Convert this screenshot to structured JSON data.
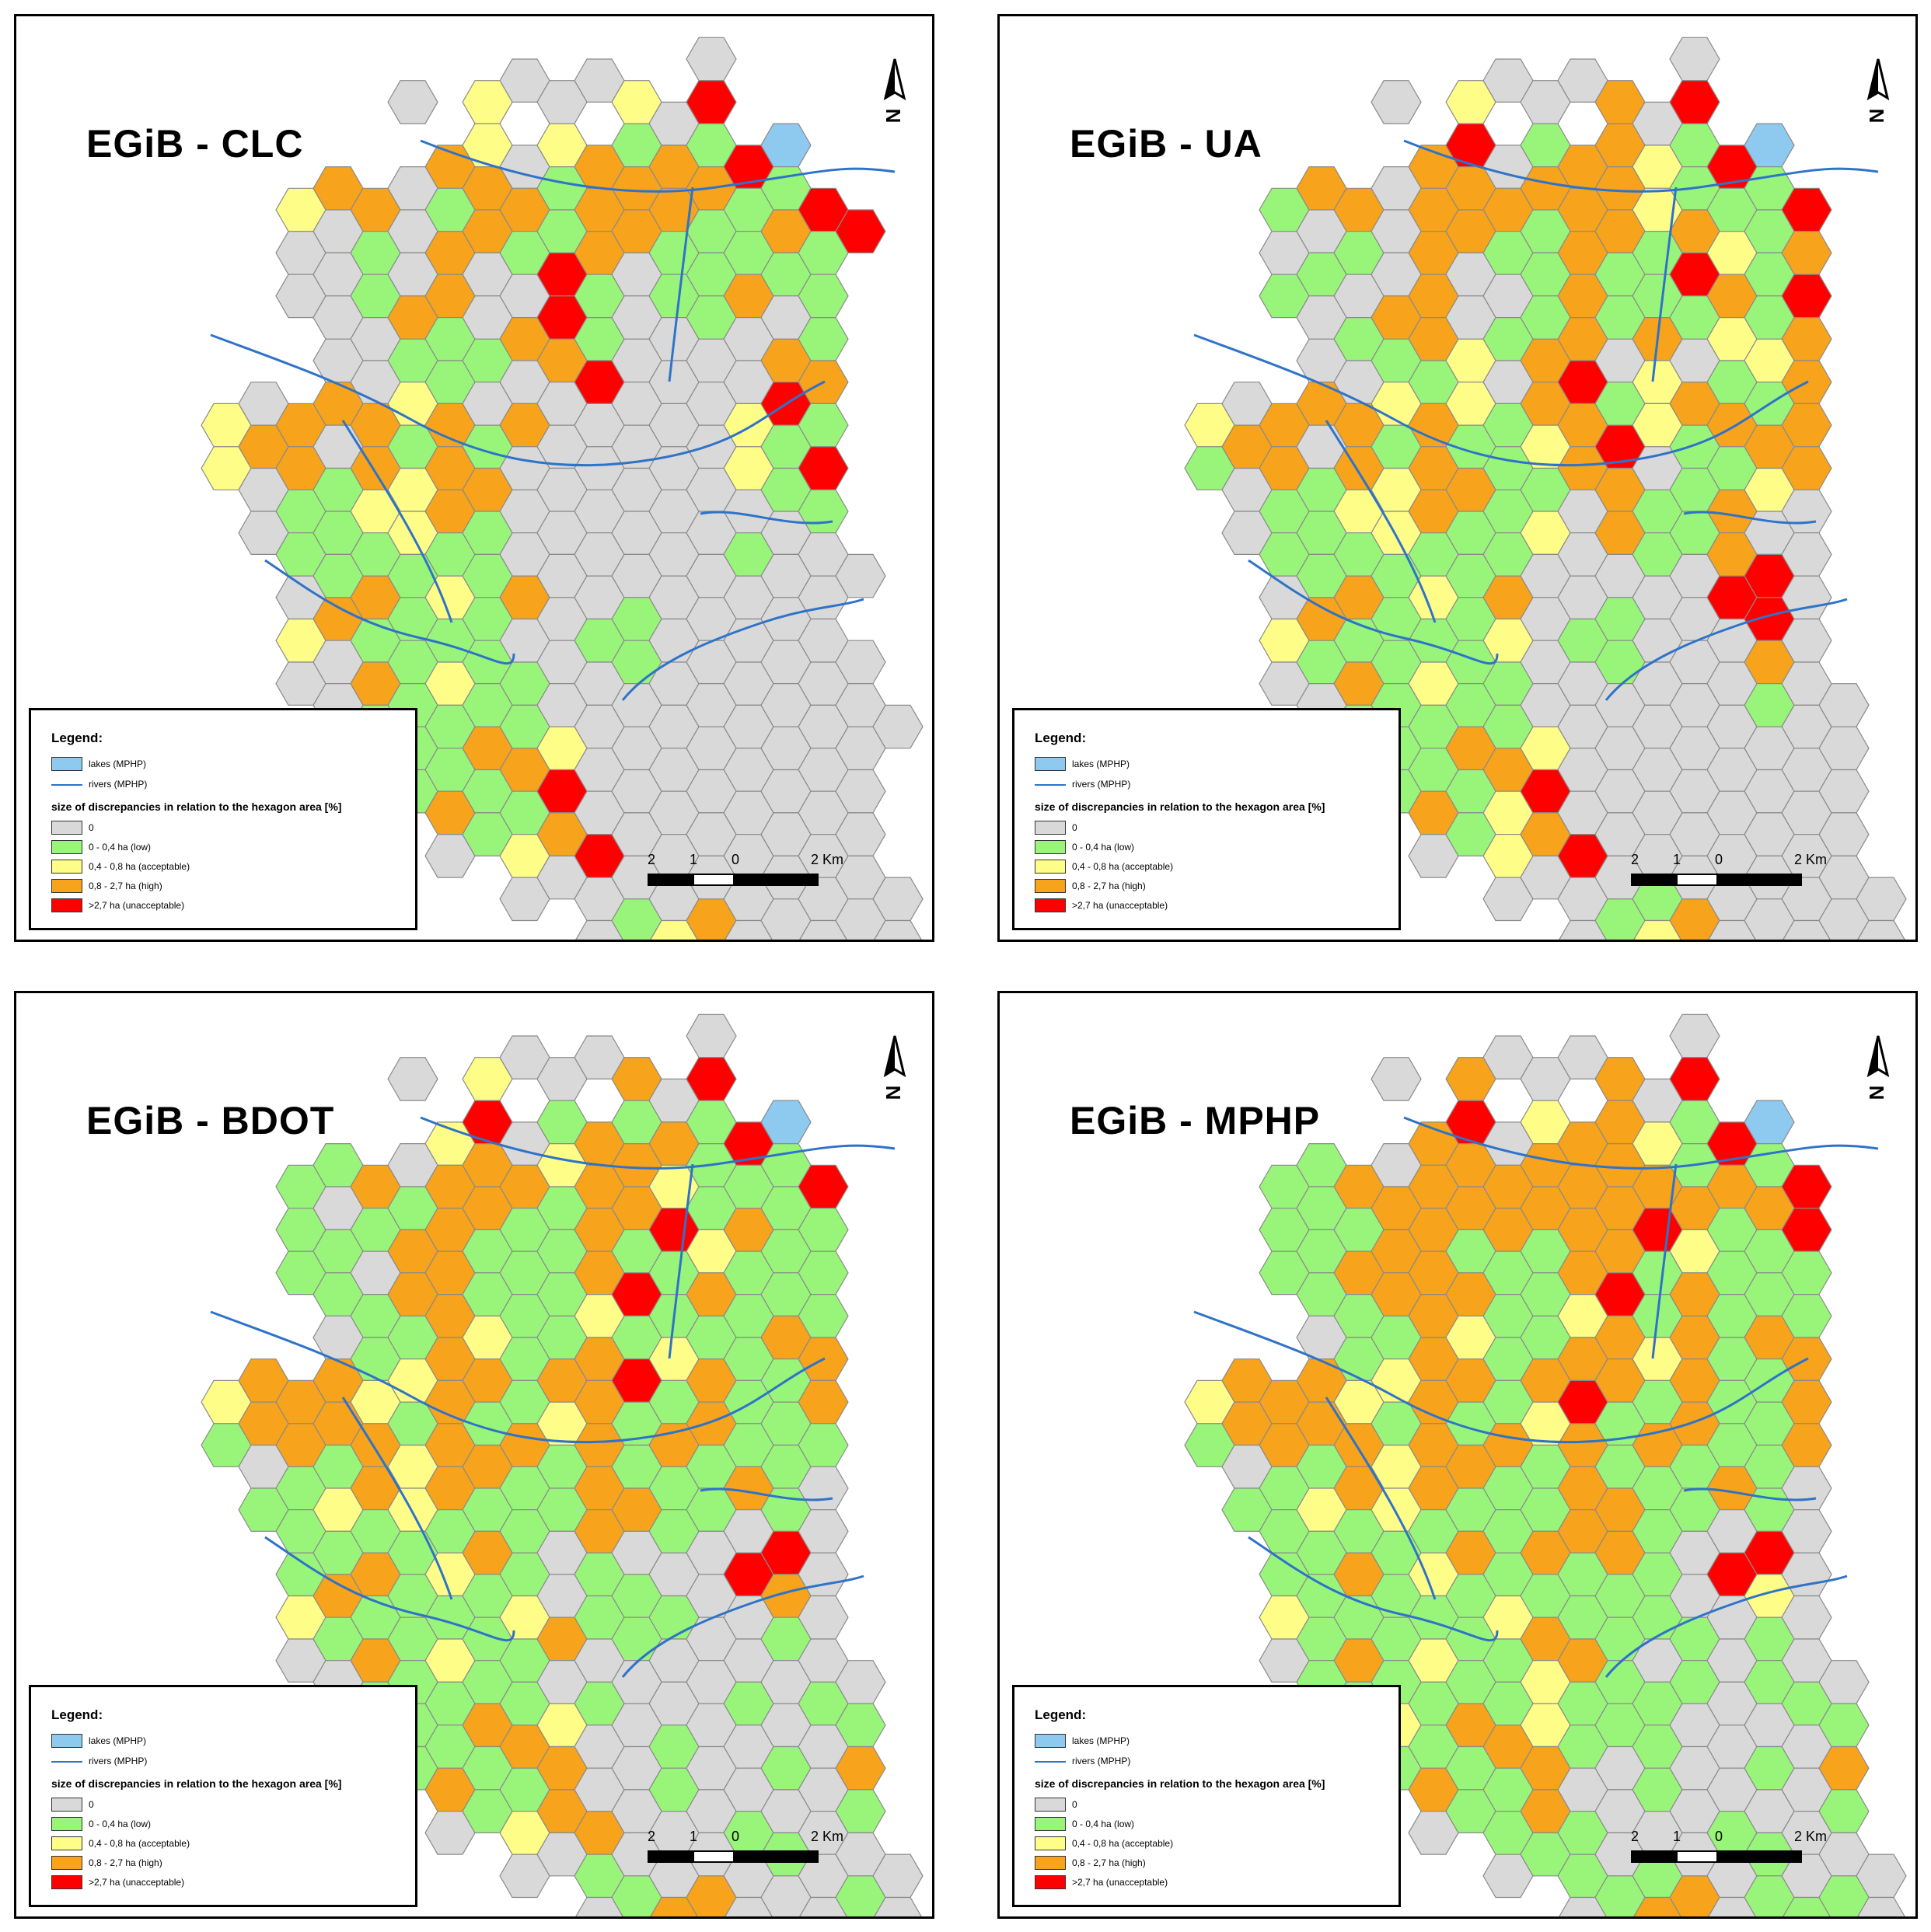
{
  "colors": {
    "zero": "#d9d9d9",
    "low": "#99f57a",
    "acceptable": "#fdfd88",
    "high": "#f7a31b",
    "unacceptable": "#ff0000",
    "lake": "#8ec9f0",
    "river": "#2f73c8",
    "hex_stroke": "#8a8a8a"
  },
  "panels": [
    {
      "title": "EGiB - CLC",
      "hex_map": [
        "---------X-X--X-----",
        "------0-Y-0-Y0R-----",
        "-------OY0YHGOGRL---",
        "---YOO0GOOGHOOOGGR--",
        "---00G0HHGGHHGGGOGR-",
        "---00G0O00RG0GGHGG--",
        "----00HG0HRG00G00G--",
        "----00GGG0HR0000HO--",
        "-Y0OOOYH0H00000YRG--",
        "-YOO0OGHG000000YGR--",
        "--0GGYYHO0000000GG--",
        "--0GGGYGG000000G00--",
        "---0GOGYGH000000000-",
        "---YOGGGG00GG00000--",
        "---00OGYGG00G000000-",
        "----0GGGGG0000000000",
        "----00GGOHY00000000-",
        "-----GGOGGR00000000-",
        "-------0GYOR0000000-",
        "---------00000000000",
        "-----------0GYO00000",
        "------------YYOO000-",
        "-------------0000---"
      ]
    },
    {
      "title": "EGiB - UA",
      "hex_map": [
        "---------X-X--X-----",
        "------0-Y-0-O0R-----",
        "-------OR0GHOYGRL---",
        "---GOO0HOOOHOYGGGR--",
        "---00G0HHGGHOGOYGH--",
        "---GG00O00GHGGRHGR--",
        "----0GHO0GGHGOGYGO--",
        "----00GGY0OR0Y0GYO--",
        "-Y0OOOYHYGOHGYOHGO--",
        "-GOO0OGHGGYOR0GGHO--",
        "--0GGYYHOGG0OGGOY0--",
        "--0GGGYGGGY0OGGO00--",
        "---0GOGYGH00000RR0--",
        "---YOGGGGY0GG000R0--",
        "---0GOGYGG00G000O0--",
        "----0GGGGG000000G00-",
        "----0GGGOHY00000000-",
        "-----GGOGYR00000000-",
        "-------0GYOR0000000-",
        "---------0000G000000",
        "-----------0GYO00000",
        "------------YGOO000-",
        "-------------0000---"
      ]
    },
    {
      "title": "EGiB - BDOT",
      "hex_map": [
        "---------X-X--X-----",
        "------0-Y-0-O0R-----",
        "-------YR0GHGOGRL---",
        "---GGO0OOOYHOYGGGR--",
        "---G0GGHOGGHHRGOGG--",
        "---GG0OOGGGOGGYGGG--",
        "----GGHOGGGYRGOGGG--",
        "----0GGOYGGOGYGGHO--",
        "-YOOOYYHOGOORGOGGO--",
        "-GOOOOGHGOYOGOHGGG--",
        "--0GGOYHOGGOGGGOG0--",
        "--GGYGYGGGGOOGG0G0--",
        "---GGOGYOG0G000RR0--",
        "---YOGGGGY0GGG00O0--",
        "---0GOGYGGO0G000G0--",
        "----0GGGGG0G000G0G0-",
        "----0GGGOHY00G0000G-",
        "-----GGOGGO00G00G0O-",
        "-------0GYOO000G00G-",
        "---------00G0000G000",
        "-----------0GOO000G0",
        "------------OOOO000-",
        "-------------0O00---"
      ]
    },
    {
      "title": "EGiB - MPHP",
      "hex_map": [
        "---------X-X--X-----",
        "------0-O-0-O0R-----",
        "-------OR0YHOYGRL---",
        "---GGO0HOOOHOOGOGR--",
        "---GGGOHHOOHOROGOR--",
        "---GGOOOGGGOOGYGGG--",
        "----GGOOOGGYRGOGGG--",
        "----0GGOYGGOOYOGOO--",
        "-YOOOYYHOGOROGOGGO--",
        "-GOOOOGHGOYOGOHGGO--",
        "--0GGOYHOGGOGGGOG0--",
        "--GGYGYGGGGOOGG0G0--",
        "---GGOGYOGOGOG0RR0--",
        "---YGGGGGYGGGG00Y0--",
        "---0GOGYGGOOG0G0G0--",
        "----GGGGGGYGGGG0GG0-",
        "----GGYGOHYGGG0000G-",
        "-----GGOGGO00G00G0O-",
        "-------0GGOG000G00G-",
        "---------0GG0G00G000",
        "-----------0GOO0GGG0",
        "------------YOOO000-",
        "-------------0GG0---"
      ]
    }
  ],
  "legend": {
    "title": "Legend:",
    "lakes": "lakes (MPHP)",
    "rivers": "rivers (MPHP)",
    "subtitle": "size of discrepancies in relation to the hexagon area [%]",
    "items": [
      "0",
      "0 - 0,4 ha (low)",
      "0,4 - 0,8 ha (acceptable)",
      "0,8 - 2,7 ha (high)",
      ">2,7 ha (unacceptable)"
    ]
  },
  "scalebar": {
    "labels": [
      "2",
      "1",
      "0",
      "2 Km"
    ]
  }
}
